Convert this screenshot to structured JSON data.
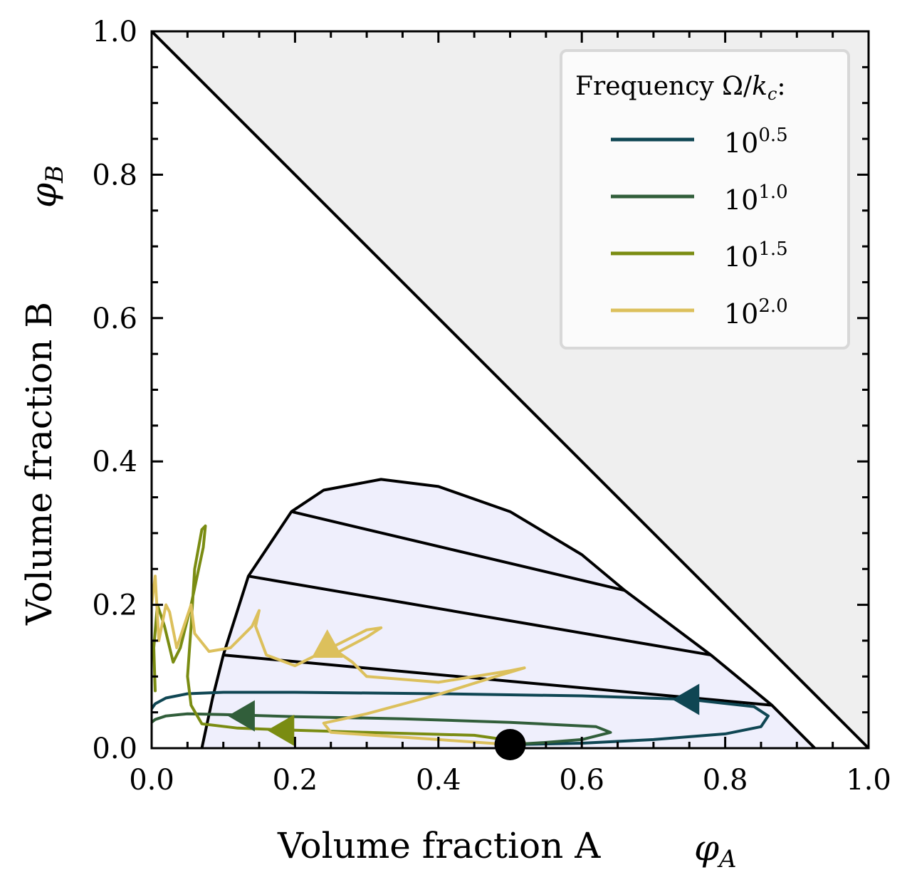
{
  "chart_data": {
    "type": "line",
    "xlabel": "Volume fraction A",
    "xlabel_symbol": "φA",
    "ylabel": "Volume fraction B",
    "ylabel_symbol": "φB",
    "xlim": [
      0,
      1
    ],
    "ylim": [
      0,
      1
    ],
    "x_ticks": [
      "0.0",
      "0.2",
      "0.4",
      "0.6",
      "0.8",
      "1.0"
    ],
    "y_ticks": [
      "0.0",
      "0.2",
      "0.4",
      "0.6",
      "0.8",
      "1.0"
    ],
    "legend": {
      "title": "Frequency Ω/kc:",
      "title_text": "Frequency Ω/",
      "title_k": "k",
      "title_sub": "c",
      "title_colon": ":",
      "placement": "top-right"
    },
    "forbidden_region": {
      "fill": "#efefef",
      "boundary": [
        [
          0,
          1
        ],
        [
          1,
          0
        ]
      ]
    },
    "binodal": {
      "fill": "#efeffc",
      "points": [
        [
          0.07,
          0
        ],
        [
          0.085,
          0.07
        ],
        [
          0.1,
          0.13
        ],
        [
          0.135,
          0.24
        ],
        [
          0.195,
          0.33
        ],
        [
          0.24,
          0.36
        ],
        [
          0.32,
          0.375
        ],
        [
          0.4,
          0.365
        ],
        [
          0.5,
          0.33
        ],
        [
          0.6,
          0.27
        ],
        [
          0.66,
          0.22
        ],
        [
          0.78,
          0.13
        ],
        [
          0.865,
          0.06
        ],
        [
          0.925,
          0
        ]
      ]
    },
    "tie_lines": [
      [
        [
          0.195,
          0.33
        ],
        [
          0.66,
          0.22
        ]
      ],
      [
        [
          0.135,
          0.24
        ],
        [
          0.78,
          0.13
        ]
      ],
      [
        [
          0.1,
          0.13
        ],
        [
          0.865,
          0.06
        ]
      ]
    ],
    "start_point": [
      0.5,
      0.005
    ],
    "series": [
      {
        "name_base": "10",
        "name_exp": "0.5",
        "color": "#0f4653",
        "points": [
          [
            0.5,
            0.005
          ],
          [
            0.6,
            0.007
          ],
          [
            0.7,
            0.012
          ],
          [
            0.8,
            0.02
          ],
          [
            0.85,
            0.03
          ],
          [
            0.86,
            0.045
          ],
          [
            0.84,
            0.058
          ],
          [
            0.75,
            0.068
          ],
          [
            0.6,
            0.073
          ],
          [
            0.4,
            0.076
          ],
          [
            0.2,
            0.078
          ],
          [
            0.1,
            0.078
          ],
          [
            0.05,
            0.076
          ],
          [
            0.02,
            0.07
          ],
          [
            0.005,
            0.062
          ],
          [
            0.0,
            0.055
          ]
        ],
        "arrow": {
          "at": [
            0.75,
            0.068
          ],
          "dir": "left"
        }
      },
      {
        "name_base": "10",
        "name_exp": "1.0",
        "color": "#315e3a",
        "points": [
          [
            0.5,
            0.005
          ],
          [
            0.55,
            0.008
          ],
          [
            0.6,
            0.012
          ],
          [
            0.64,
            0.022
          ],
          [
            0.62,
            0.03
          ],
          [
            0.5,
            0.036
          ],
          [
            0.35,
            0.041
          ],
          [
            0.2,
            0.044
          ],
          [
            0.1,
            0.047
          ],
          [
            0.05,
            0.048
          ],
          [
            0.02,
            0.045
          ],
          [
            0.005,
            0.04
          ],
          [
            0.0,
            0.036
          ]
        ],
        "arrow": {
          "at": [
            0.13,
            0.045
          ],
          "dir": "left"
        }
      },
      {
        "name_base": "10",
        "name_exp": "1.5",
        "color": "#7a8c12",
        "points": [
          [
            0.52,
            0.008
          ],
          [
            0.45,
            0.018
          ],
          [
            0.3,
            0.022
          ],
          [
            0.2,
            0.025
          ],
          [
            0.12,
            0.028
          ],
          [
            0.07,
            0.034
          ],
          [
            0.055,
            0.06
          ],
          [
            0.05,
            0.1
          ],
          [
            0.055,
            0.17
          ],
          [
            0.06,
            0.25
          ],
          [
            0.07,
            0.305
          ],
          [
            0.075,
            0.31
          ],
          [
            0.072,
            0.28
          ],
          [
            0.055,
            0.2
          ],
          [
            0.04,
            0.14
          ],
          [
            0.03,
            0.12
          ],
          [
            0.018,
            0.17
          ],
          [
            0.008,
            0.2
          ],
          [
            0.003,
            0.14
          ],
          [
            0.005,
            0.08
          ]
        ],
        "arrow": {
          "at": [
            0.185,
            0.025
          ],
          "dir": "left"
        }
      },
      {
        "name_base": "10",
        "name_exp": "2.0",
        "color": "#dcc05c",
        "points": [
          [
            0.5,
            0.005
          ],
          [
            0.4,
            0.012
          ],
          [
            0.25,
            0.022
          ],
          [
            0.24,
            0.035
          ],
          [
            0.3,
            0.048
          ],
          [
            0.4,
            0.075
          ],
          [
            0.48,
            0.1
          ],
          [
            0.52,
            0.112
          ],
          [
            0.5,
            0.108
          ],
          [
            0.4,
            0.092
          ],
          [
            0.3,
            0.1
          ],
          [
            0.28,
            0.12
          ],
          [
            0.26,
            0.134
          ],
          [
            0.3,
            0.155
          ],
          [
            0.32,
            0.168
          ],
          [
            0.3,
            0.165
          ],
          [
            0.25,
            0.14
          ],
          [
            0.2,
            0.115
          ],
          [
            0.16,
            0.13
          ],
          [
            0.145,
            0.17
          ],
          [
            0.15,
            0.192
          ],
          [
            0.14,
            0.17
          ],
          [
            0.11,
            0.14
          ],
          [
            0.08,
            0.135
          ],
          [
            0.06,
            0.16
          ],
          [
            0.055,
            0.2
          ],
          [
            0.045,
            0.17
          ],
          [
            0.035,
            0.14
          ],
          [
            0.025,
            0.19
          ],
          [
            0.02,
            0.2
          ],
          [
            0.01,
            0.15
          ],
          [
            0.005,
            0.24
          ],
          [
            0.0,
            0.2
          ]
        ],
        "arrow": {
          "at": [
            0.245,
            0.14
          ],
          "dir": "up"
        }
      }
    ]
  }
}
